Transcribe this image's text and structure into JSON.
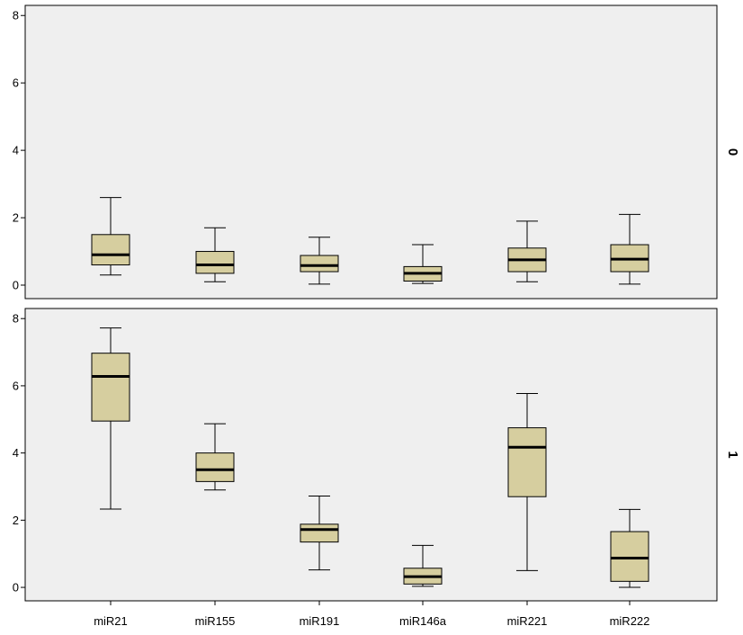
{
  "chart_data": {
    "type": "boxplot",
    "categories": [
      "miR21",
      "miR155",
      "miR191",
      "miR146a",
      "miR221",
      "miR222"
    ],
    "y_ticks": [
      0,
      2,
      4,
      6,
      8
    ],
    "ylim": [
      -0.4,
      8.3
    ],
    "panels": [
      {
        "label": "0",
        "boxes": [
          {
            "category": "miR21",
            "min": 0.3,
            "q1": 0.6,
            "median": 0.9,
            "q3": 1.5,
            "max": 2.6
          },
          {
            "category": "miR155",
            "min": 0.1,
            "q1": 0.35,
            "median": 0.6,
            "q3": 1.0,
            "max": 1.7
          },
          {
            "category": "miR191",
            "min": 0.03,
            "q1": 0.4,
            "median": 0.58,
            "q3": 0.88,
            "max": 1.42
          },
          {
            "category": "miR146a",
            "min": 0.05,
            "q1": 0.12,
            "median": 0.35,
            "q3": 0.55,
            "max": 1.2
          },
          {
            "category": "miR221",
            "min": 0.1,
            "q1": 0.4,
            "median": 0.75,
            "q3": 1.1,
            "max": 1.9
          },
          {
            "category": "miR222",
            "min": 0.03,
            "q1": 0.4,
            "median": 0.77,
            "q3": 1.2,
            "max": 2.1
          }
        ]
      },
      {
        "label": "1",
        "boxes": [
          {
            "category": "miR21",
            "min": 2.33,
            "q1": 4.95,
            "median": 6.28,
            "q3": 6.97,
            "max": 7.72
          },
          {
            "category": "miR155",
            "min": 2.9,
            "q1": 3.15,
            "median": 3.5,
            "q3": 4.0,
            "max": 4.87
          },
          {
            "category": "miR191",
            "min": 0.52,
            "q1": 1.35,
            "median": 1.72,
            "q3": 1.88,
            "max": 2.72
          },
          {
            "category": "miR146a",
            "min": 0.03,
            "q1": 0.1,
            "median": 0.32,
            "q3": 0.57,
            "max": 1.25
          },
          {
            "category": "miR221",
            "min": 0.5,
            "q1": 2.7,
            "median": 4.17,
            "q3": 4.75,
            "max": 5.77
          },
          {
            "category": "miR222",
            "min": 0.0,
            "q1": 0.18,
            "median": 0.87,
            "q3": 1.66,
            "max": 2.32
          }
        ]
      }
    ],
    "colors": {
      "box_fill": "#d6ce9f",
      "plot_bg": "#efefef",
      "frame": "#000000",
      "median": "#000000"
    }
  }
}
